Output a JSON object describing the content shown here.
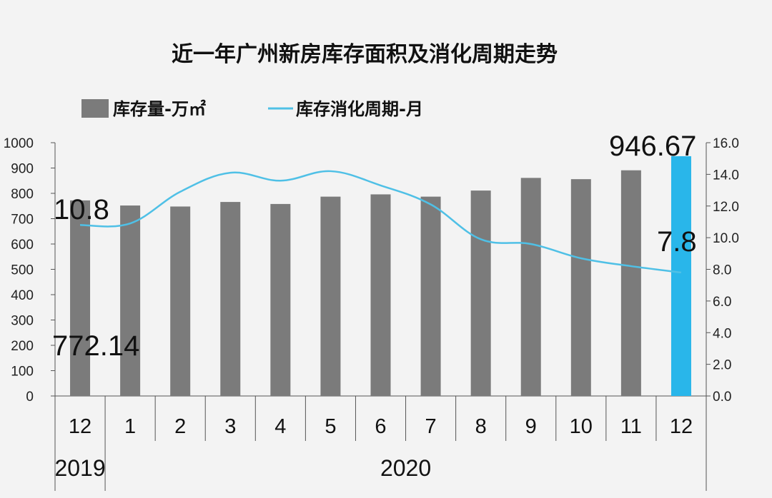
{
  "chart_data": {
    "type": "bar",
    "title": "近一年广州新房库存面积及消化周期走势",
    "categories": [
      "12",
      "1",
      "2",
      "3",
      "4",
      "5",
      "6",
      "7",
      "8",
      "9",
      "10",
      "11",
      "12"
    ],
    "year_labels": [
      "2019",
      "2020"
    ],
    "series": [
      {
        "name": "库存量-万㎡",
        "kind": "bar",
        "axis": "left",
        "color": "#7b7b7b",
        "highlight_color": "#29b6ea",
        "values": [
          772.14,
          752,
          748,
          766,
          758,
          787,
          796,
          787,
          811,
          861,
          856,
          891,
          946.67
        ]
      },
      {
        "name": "库存消化周期-月",
        "kind": "line",
        "axis": "right",
        "color": "#4fc0e6",
        "values": [
          10.8,
          10.9,
          12.9,
          14.1,
          13.6,
          14.2,
          13.3,
          12.1,
          9.9,
          9.6,
          8.7,
          8.2,
          7.8
        ]
      }
    ],
    "y_left": {
      "min": 0,
      "max": 1000,
      "ticks": [
        "0",
        "100",
        "200",
        "300",
        "400",
        "500",
        "600",
        "700",
        "800",
        "900",
        "1000"
      ]
    },
    "y_right": {
      "min": 0,
      "max": 16,
      "ticks": [
        "0.0",
        "2.0",
        "4.0",
        "6.0",
        "8.0",
        "10.0",
        "12.0",
        "14.0",
        "16.0"
      ]
    },
    "data_labels": {
      "bar_first": "772.14",
      "bar_last": "946.67",
      "line_first": "10.8",
      "line_last": "7.8"
    },
    "legend": {
      "position": "top-left"
    },
    "grid": false
  }
}
